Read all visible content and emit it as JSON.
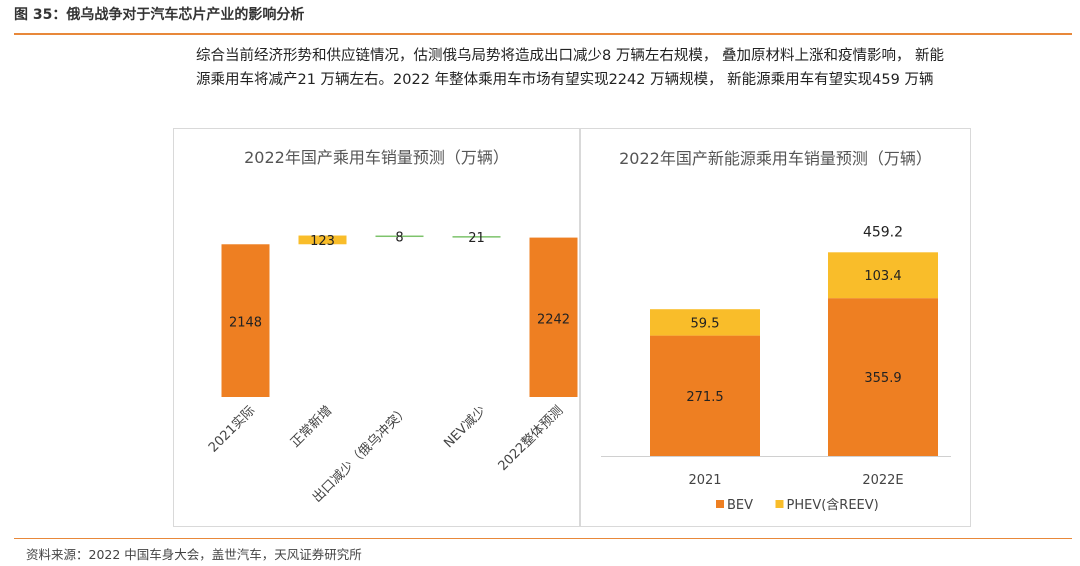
{
  "figure": {
    "title": "图 35：俄乌战争对于汽车芯片产业的影响分析",
    "summary": "综合当前经济形势和供应链情况，估测俄乌局势将造成出口减少8 万辆左右规模， 叠加原材料上涨和疫情影响， 新能源乘用车将减产21 万辆左右。2022 年整体乘用车市场有望实现2242 万辆规模， 新能源乘用车有望实现459 万辆",
    "source": "资料来源：2022 中国车身大会，盖世汽车，天风证券研究所"
  },
  "colors": {
    "orange": "#ee7f22",
    "yellow": "#f9bd2a",
    "green": "#7dc36b",
    "accent_rule": "#e8883a"
  },
  "chart_data": [
    {
      "type": "bar",
      "subtype": "waterfall",
      "title": "2022年国产乘用车销量预测（万辆）",
      "categories": [
        "2021实际",
        "正常新增",
        "出口减少（俄乌冲突）",
        "NEV减少",
        "2022整体预测"
      ],
      "values": [
        2148,
        123,
        -8,
        -21,
        2242
      ],
      "labels": [
        "2148",
        "123",
        "8",
        "21",
        "2242"
      ],
      "kinds": [
        "total",
        "increase",
        "decrease",
        "decrease",
        "total"
      ],
      "bar_colors": [
        "#ee7f22",
        "#f9bd2a",
        "#7dc36b",
        "#7dc36b",
        "#ee7f22"
      ],
      "legend": "none",
      "grid": false
    },
    {
      "type": "bar",
      "subtype": "stacked",
      "title": "2022年国产新能源乘用车销量预测（万辆）",
      "categories": [
        "2021",
        "2022E"
      ],
      "series": [
        {
          "name": "BEV",
          "values": [
            271.5,
            355.9
          ],
          "color": "#ee7f22"
        },
        {
          "name": "PHEV(含REEV)",
          "values": [
            59.5,
            103.4
          ],
          "color": "#f9bd2a"
        }
      ],
      "totals": [
        null,
        459.2
      ],
      "legend": "bottom",
      "grid": false
    }
  ]
}
